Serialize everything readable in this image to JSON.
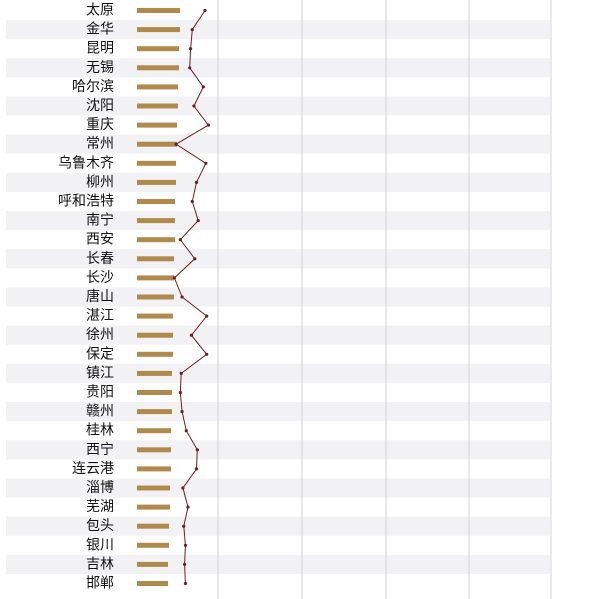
{
  "chart_data": {
    "type": "bar",
    "categories": [
      "太原",
      "金华",
      "昆明",
      "无锡",
      "哈尔滨",
      "沈阳",
      "重庆",
      "常州",
      "乌鲁木齐",
      "柳州",
      "呼和浩特",
      "南宁",
      "西安",
      "长春",
      "长沙",
      "唐山",
      "湛江",
      "徐州",
      "保定",
      "镇江",
      "贵阳",
      "赣州",
      "桂林",
      "西宁",
      "连云港",
      "淄博",
      "芜湖",
      "包头",
      "银川",
      "吉林",
      "邯郸"
    ],
    "bar_values": [
      43,
      43,
      42,
      42,
      41,
      41,
      40,
      40,
      39,
      39,
      38,
      38,
      38,
      37,
      37,
      37,
      36,
      36,
      36,
      35,
      35,
      35,
      34,
      34,
      34,
      33,
      33,
      32,
      32,
      31,
      31
    ],
    "line_values": [
      80,
      65,
      63,
      62,
      78,
      67,
      84,
      46,
      81,
      70,
      65,
      72,
      51,
      68,
      44,
      53,
      82,
      64,
      82,
      52,
      51,
      53,
      58,
      71,
      70,
      54,
      60,
      55,
      57,
      56,
      57
    ],
    "bar_color": "#b08a4c",
    "line_color": "#6b1f24",
    "stripe_color": "#f2f2f4",
    "grid": true
  }
}
